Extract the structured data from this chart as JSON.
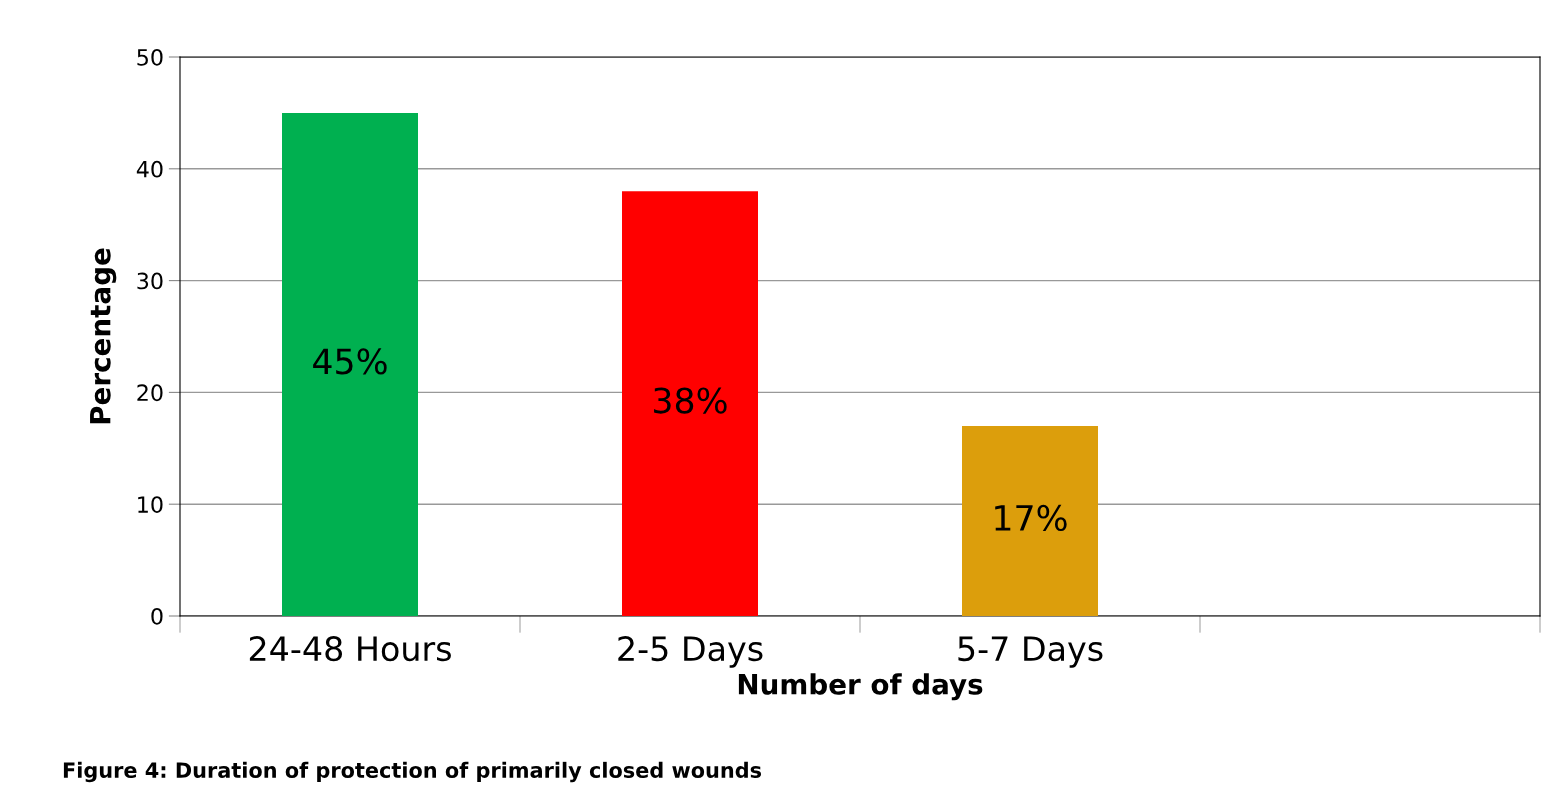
{
  "chart_data": {
    "type": "bar",
    "categories": [
      "24-48 Hours",
      "2-5 Days",
      "5-7 Days",
      null
    ],
    "values": [
      45,
      38,
      17,
      null
    ],
    "colors": [
      "#00b050",
      "#ff0000",
      "#dc9e0c",
      "#000000"
    ],
    "value_labels": [
      "45%",
      "38%",
      "17%",
      null
    ],
    "xlabel": "Number of days",
    "ylabel": "Percentage",
    "ylim": [
      0,
      50
    ],
    "yticks": [
      0,
      10,
      20,
      30,
      40,
      50
    ],
    "grid": "y",
    "legend": false,
    "annotations": [
      "Figure 4: Duration of protection of primarily closed wounds"
    ]
  }
}
